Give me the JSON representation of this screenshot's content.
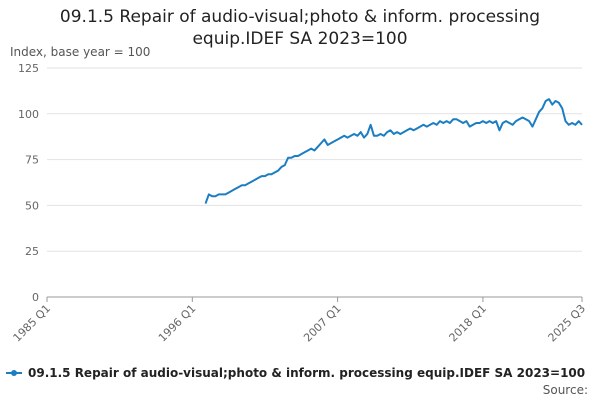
{
  "chart_data": {
    "type": "line",
    "title": "09.1.5 Repair of audio-visual;photo & inform. processing equip.IDEF SA 2023=100",
    "y_label": "Index, base year = 100",
    "source": "Source:",
    "categories": [
      "1985 Q1",
      null,
      null,
      null,
      null,
      null,
      null,
      null,
      null,
      null,
      null,
      null,
      null,
      null,
      null,
      null,
      null,
      null,
      null,
      null,
      null,
      null,
      null,
      null,
      null,
      null,
      null,
      null,
      null,
      null,
      null,
      null,
      null,
      null,
      null,
      null,
      null,
      null,
      null,
      null,
      null,
      null,
      null,
      null,
      "1996 Q1",
      null,
      null,
      null,
      null,
      null,
      null,
      null,
      null,
      null,
      null,
      null,
      null,
      null,
      null,
      null,
      null,
      null,
      null,
      null,
      null,
      null,
      null,
      null,
      null,
      null,
      null,
      null,
      null,
      null,
      null,
      null,
      null,
      null,
      null,
      null,
      null,
      null,
      null,
      null,
      null,
      null,
      null,
      null,
      "2007 Q1",
      null,
      null,
      null,
      null,
      null,
      null,
      null,
      null,
      null,
      null,
      null,
      null,
      null,
      null,
      null,
      null,
      null,
      null,
      null,
      null,
      null,
      null,
      null,
      null,
      null,
      null,
      null,
      null,
      null,
      null,
      null,
      null,
      null,
      null,
      null,
      null,
      null,
      null,
      null,
      null,
      null,
      null,
      null,
      "2018 Q1",
      null,
      null,
      null,
      null,
      null,
      null,
      null,
      null,
      null,
      null,
      null,
      null,
      null,
      null,
      null,
      null,
      null,
      null,
      null,
      null,
      null,
      null,
      null,
      null,
      null,
      null,
      null,
      null,
      null,
      "2025 Q3"
    ],
    "series": [
      {
        "name": "09.1.5 Repair of audio-visual;photo & inform. processing equip.IDEF SA 2023=100",
        "color": "#1b7ec2",
        "values": [
          null,
          null,
          null,
          null,
          null,
          null,
          null,
          null,
          null,
          null,
          null,
          null,
          null,
          null,
          null,
          null,
          null,
          null,
          null,
          null,
          null,
          null,
          null,
          null,
          null,
          null,
          null,
          null,
          null,
          null,
          null,
          null,
          null,
          null,
          null,
          null,
          null,
          null,
          null,
          null,
          null,
          null,
          null,
          null,
          null,
          null,
          null,
          null,
          51,
          56,
          55,
          55,
          56,
          56,
          56,
          57,
          58,
          59,
          60,
          61,
          61,
          62,
          63,
          64,
          65,
          66,
          66,
          67,
          67,
          68,
          69,
          71,
          72,
          76,
          76,
          77,
          77,
          78,
          79,
          80,
          81,
          80,
          82,
          84,
          86,
          83,
          84,
          85,
          86,
          87,
          88,
          87,
          88,
          89,
          88,
          90,
          87,
          89,
          94,
          88,
          88,
          89,
          88,
          90,
          91,
          89,
          90,
          89,
          90,
          91,
          92,
          91,
          92,
          93,
          94,
          93,
          94,
          95,
          94,
          96,
          95,
          96,
          95,
          97,
          97,
          96,
          95,
          96,
          93,
          94,
          95,
          95,
          96,
          95,
          96,
          95,
          96,
          91,
          95,
          96,
          95,
          94,
          96,
          97,
          98,
          97,
          96,
          93,
          97,
          101,
          103,
          107,
          108,
          105,
          107,
          106,
          103,
          96,
          94,
          95,
          94,
          96,
          94
        ]
      }
    ],
    "ylim": [
      0,
      125
    ],
    "yticks": [
      0,
      25,
      50,
      75,
      100,
      125
    ],
    "grid": true
  }
}
